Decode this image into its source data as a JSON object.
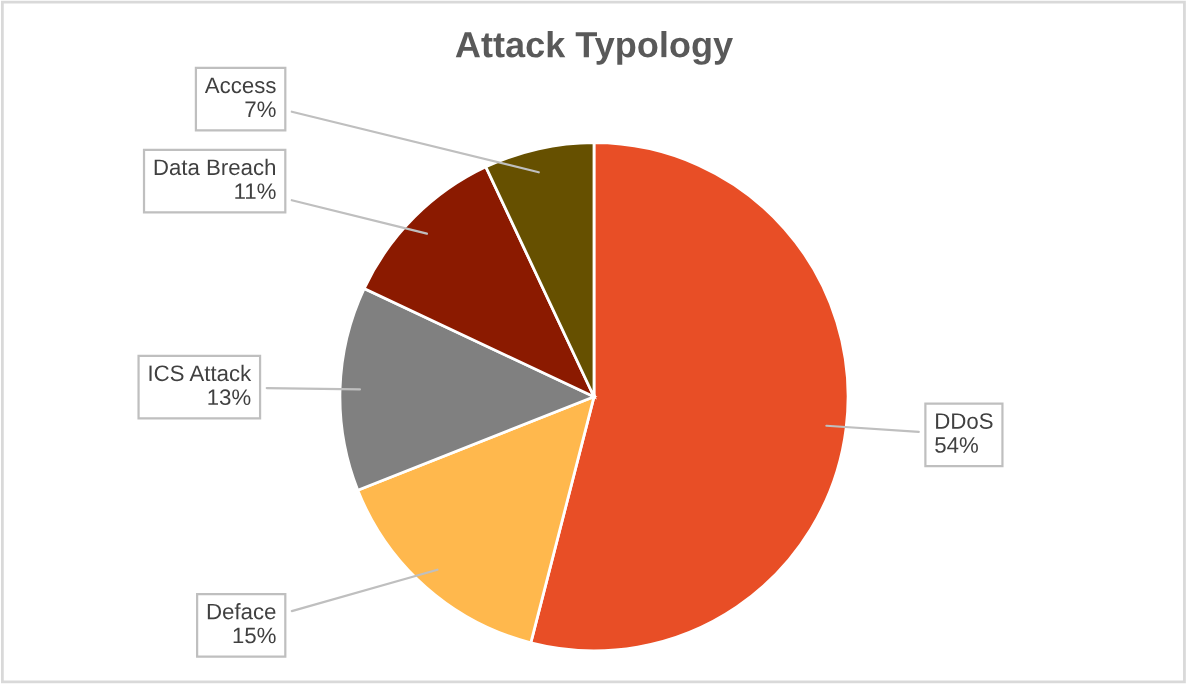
{
  "chart_data": {
    "type": "pie",
    "title": "Attack Typology",
    "categories": [
      "DDoS",
      "Deface",
      "ICS Attack",
      "Data Breach",
      "Access"
    ],
    "values": [
      54,
      15,
      13,
      11,
      7
    ],
    "colors": [
      "#e84e26",
      "#ffb84d",
      "#808080",
      "#8b1a00",
      "#665000"
    ],
    "value_labels": [
      "54%",
      "15%",
      "13%",
      "11%",
      "7%"
    ],
    "legend": false
  }
}
